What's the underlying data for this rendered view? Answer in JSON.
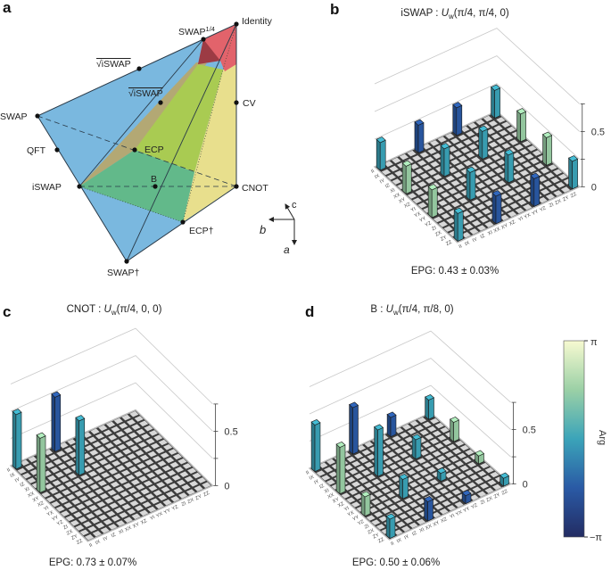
{
  "panel_labels": {
    "a": "a",
    "b": "b",
    "c": "c",
    "d": "d"
  },
  "panel_a": {
    "vertices": {
      "identity": "Identity",
      "swap_quarter": "SWAP",
      "swap_quarter_sup": "1/4",
      "sqrt_iswap_outer": "√iSWAP",
      "sqrt_iswap_inner": "√iSWAP",
      "cv": "CV",
      "swap": "SWAP",
      "qft": "QFT",
      "ecp": "ECP",
      "b": "B",
      "iswap": "iSWAP",
      "cnot": "CNOT",
      "ecp_dagger": "ECP†",
      "swap_dagger": "SWAP†"
    },
    "axes": {
      "a": "a",
      "b": "b",
      "c": "c"
    },
    "colors": {
      "blue": "#7ab8df",
      "red": "#e2636b",
      "dark_red": "#9c3b44",
      "yellow": "#e8df8d",
      "light_green": "#a9cb52",
      "green": "#62b98a",
      "olive": "#b3a874"
    }
  },
  "pauli_labels": [
    "II",
    "IX",
    "IY",
    "IZ",
    "XI",
    "XX",
    "XY",
    "XZ",
    "YI",
    "YX",
    "YY",
    "YZ",
    "ZI",
    "ZX",
    "ZY",
    "ZZ"
  ],
  "colorbar": {
    "max_label": "π",
    "min_label": "−π",
    "title": "Arg",
    "stops": [
      "#232c63",
      "#2a5aa5",
      "#3ba4b9",
      "#9bd0a6",
      "#f7fad1"
    ]
  },
  "chart_data": [
    {
      "id": "b",
      "type": "bar3d",
      "title": {
        "gate": "iSWAP : ",
        "op": "U",
        "sub": "w",
        "args": "(π/4, π/4, 0)"
      },
      "epg": "EPG: 0.43 ± 0.03%",
      "zlim": [
        0,
        0.75
      ],
      "z_ticks": [
        0,
        0.25,
        0.5,
        0.75
      ],
      "z_tick_labels": {
        "0": "0",
        "0.5": "0.5"
      },
      "bars": [
        [
          0,
          0,
          0.25,
          0
        ],
        [
          0,
          5,
          0.25,
          -1.571
        ],
        [
          0,
          10,
          0.25,
          -1.571
        ],
        [
          0,
          15,
          0.25,
          0
        ],
        [
          5,
          0,
          0.25,
          1.571
        ],
        [
          5,
          5,
          0.25,
          0
        ],
        [
          5,
          10,
          0.25,
          0
        ],
        [
          5,
          15,
          0.25,
          1.571
        ],
        [
          10,
          0,
          0.25,
          1.571
        ],
        [
          10,
          5,
          0.25,
          0
        ],
        [
          10,
          10,
          0.25,
          0
        ],
        [
          10,
          15,
          0.25,
          1.571
        ],
        [
          15,
          0,
          0.25,
          0
        ],
        [
          15,
          5,
          0.25,
          -1.571
        ],
        [
          15,
          10,
          0.25,
          -1.571
        ],
        [
          15,
          15,
          0.25,
          0
        ]
      ]
    },
    {
      "id": "c",
      "type": "bar3d",
      "title": {
        "gate": "CNOT : ",
        "op": "U",
        "sub": "w",
        "args": "(π/4, 0, 0)"
      },
      "epg": "EPG: 0.73 ± 0.07%",
      "zlim": [
        0,
        0.75
      ],
      "z_ticks": [
        0,
        0.25,
        0.5,
        0.75
      ],
      "z_tick_labels": {
        "0": "0",
        "0.5": "0.5"
      },
      "bars": [
        [
          0,
          0,
          0.5,
          0
        ],
        [
          0,
          5,
          0.5,
          -1.571
        ],
        [
          5,
          0,
          0.5,
          1.571
        ],
        [
          5,
          5,
          0.5,
          0
        ]
      ]
    },
    {
      "id": "d",
      "type": "bar3d",
      "title": {
        "gate": "B : ",
        "op": "U",
        "sub": "w",
        "args": "(π/4, π/8, 0)"
      },
      "epg": "EPG: 0.50 ± 0.06%",
      "zlim": [
        0,
        0.75
      ],
      "z_ticks": [
        0,
        0.25,
        0.5,
        0.75
      ],
      "z_tick_labels": {
        "0": "0",
        "0.5": "0.5"
      },
      "bars": [
        [
          0,
          0,
          0.427,
          0
        ],
        [
          0,
          5,
          0.427,
          -1.571
        ],
        [
          0,
          10,
          0.177,
          -1.571
        ],
        [
          0,
          15,
          0.177,
          0
        ],
        [
          5,
          0,
          0.427,
          1.571
        ],
        [
          5,
          5,
          0.427,
          0
        ],
        [
          5,
          10,
          0.177,
          0
        ],
        [
          5,
          15,
          0.177,
          1.571
        ],
        [
          10,
          0,
          0.177,
          1.571
        ],
        [
          10,
          5,
          0.177,
          0
        ],
        [
          10,
          10,
          0.073,
          0
        ],
        [
          10,
          15,
          0.073,
          1.571
        ],
        [
          15,
          0,
          0.177,
          0
        ],
        [
          15,
          5,
          0.177,
          -1.571
        ],
        [
          15,
          10,
          0.073,
          -1.571
        ],
        [
          15,
          15,
          0.073,
          0
        ]
      ]
    }
  ]
}
